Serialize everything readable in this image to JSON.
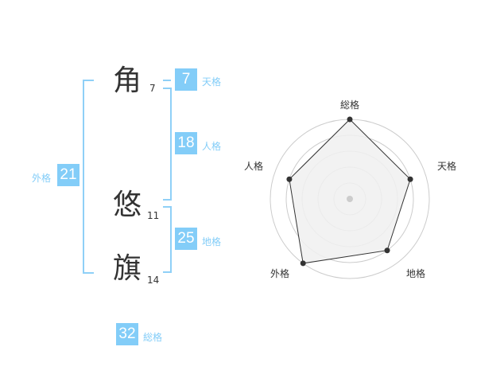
{
  "name": {
    "characters": [
      {
        "char": "角",
        "strokes": "7"
      },
      {
        "char": "悠",
        "strokes": "11"
      },
      {
        "char": "旗",
        "strokes": "14"
      }
    ]
  },
  "fortunes": {
    "tenkaku": {
      "label": "天格",
      "value": "7"
    },
    "jinkaku": {
      "label": "人格",
      "value": "18"
    },
    "chikaku": {
      "label": "地格",
      "value": "25"
    },
    "gaikaku": {
      "label": "外格",
      "value": "21"
    },
    "soukaku": {
      "label": "総格",
      "value": "32"
    }
  },
  "colors": {
    "accent": "#83cdf8",
    "radar_fill": "#f0f0f0",
    "radar_line": "#333333",
    "grid": "#cccccc"
  },
  "chart_data": {
    "type": "radar",
    "categories": [
      "総格",
      "天格",
      "地格",
      "外格",
      "人格"
    ],
    "values": [
      5,
      4,
      4,
      5,
      4
    ],
    "range": [
      0,
      5
    ],
    "rings": 5
  }
}
